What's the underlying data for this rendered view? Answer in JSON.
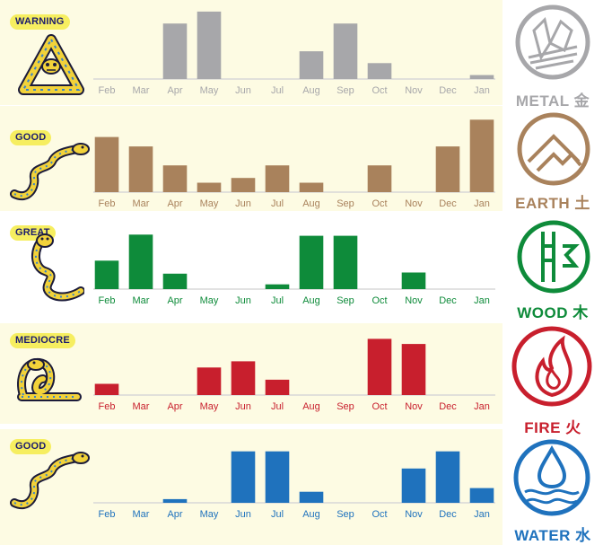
{
  "chart_data": [
    {
      "type": "bar",
      "rating": "WARNING",
      "element": "METAL 金",
      "color": "#a7a7aa",
      "categories": [
        "Feb",
        "Mar",
        "Apr",
        "May",
        "Jun",
        "Jul",
        "Aug",
        "Sep",
        "Oct",
        "Nov",
        "Dec",
        "Jan"
      ],
      "values": [
        0,
        0,
        4.2,
        5.1,
        0,
        0,
        2.1,
        4.2,
        1.2,
        0,
        0,
        0.3
      ],
      "ylim": [
        0,
        5.3
      ]
    },
    {
      "type": "bar",
      "rating": "GOOD",
      "element": "EARTH 土",
      "color": "#a9825c",
      "categories": [
        "Feb",
        "Mar",
        "Apr",
        "May",
        "Jun",
        "Jul",
        "Aug",
        "Sep",
        "Oct",
        "Nov",
        "Dec",
        "Jan"
      ],
      "values": [
        3.5,
        2.9,
        1.7,
        0.6,
        0.9,
        1.7,
        0.6,
        0,
        1.7,
        0,
        2.9,
        4.6
      ],
      "ylim": [
        0,
        4.9
      ]
    },
    {
      "type": "bar",
      "rating": "GREAT",
      "element": "WOOD 木",
      "color": "#0e8b3a",
      "categories": [
        "Feb",
        "Mar",
        "Apr",
        "May",
        "Jun",
        "Jul",
        "Aug",
        "Sep",
        "Oct",
        "Nov",
        "Dec",
        "Jan"
      ],
      "values": [
        2.4,
        4.6,
        1.3,
        0,
        0,
        0.4,
        4.5,
        4.5,
        0,
        1.4,
        0,
        0
      ],
      "ylim": [
        0,
        5.0
      ]
    },
    {
      "type": "bar",
      "rating": "MEDIOCRE",
      "element": "FIRE 火",
      "color": "#c81f2d",
      "categories": [
        "Feb",
        "Mar",
        "Apr",
        "May",
        "Jun",
        "Jul",
        "Aug",
        "Sep",
        "Oct",
        "Nov",
        "Dec",
        "Jan"
      ],
      "values": [
        1.1,
        0,
        0,
        2.7,
        3.3,
        1.5,
        0,
        0,
        5.5,
        5.0,
        0,
        0
      ],
      "ylim": [
        0,
        5.8
      ]
    },
    {
      "type": "bar",
      "rating": "GOOD",
      "element": "WATER 水",
      "color": "#1f72bd",
      "categories": [
        "Feb",
        "Mar",
        "Apr",
        "May",
        "Jun",
        "Jul",
        "Aug",
        "Sep",
        "Oct",
        "Nov",
        "Dec",
        "Jan"
      ],
      "values": [
        0,
        0,
        0.3,
        0,
        4.2,
        4.2,
        0.9,
        0,
        0,
        2.8,
        4.2,
        1.2
      ],
      "ylim": [
        0,
        4.4
      ]
    }
  ]
}
